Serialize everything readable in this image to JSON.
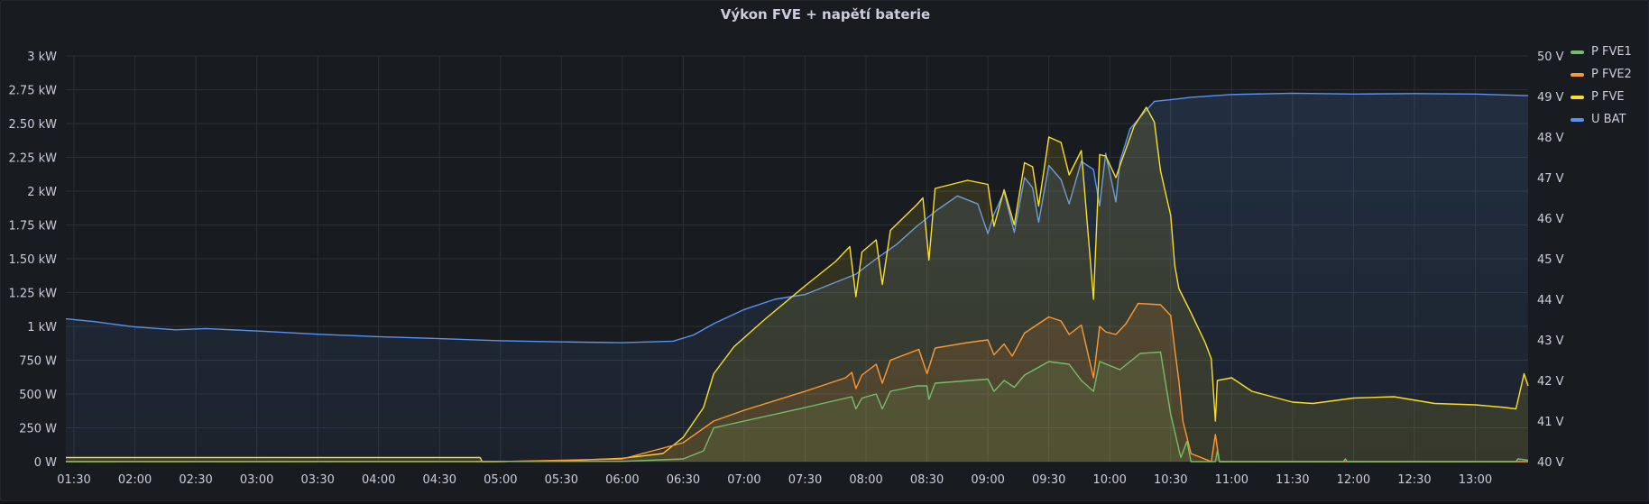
{
  "panel": {
    "title": "Výkon FVE + napětí baterie"
  },
  "colors": {
    "p_fve1": "#73bf69",
    "p_fve2": "#ff9830",
    "p_fve": "#fade2a",
    "u_bat": "#5794f2"
  },
  "legend": [
    {
      "name": "P FVE1",
      "color": "#73bf69"
    },
    {
      "name": "P FVE2",
      "color": "#ff9830"
    },
    {
      "name": "P FVE",
      "color": "#fade2a"
    },
    {
      "name": "U BAT",
      "color": "#5794f2"
    }
  ],
  "chart_data": {
    "type": "area",
    "title": "Výkon FVE + napětí baterie",
    "x_ticks": [
      "01:30",
      "02:00",
      "02:30",
      "03:00",
      "03:30",
      "04:00",
      "04:30",
      "05:00",
      "05:30",
      "06:00",
      "06:30",
      "07:00",
      "07:30",
      "08:00",
      "08:30",
      "09:00",
      "09:30",
      "10:00",
      "10:30",
      "11:00",
      "11:30",
      "12:00",
      "12:30",
      "13:00"
    ],
    "xlim": [
      "01:26",
      "13:26"
    ],
    "y_left": {
      "unit": "W",
      "ylim": [
        0,
        3000
      ],
      "ticks": [
        {
          "value": 0,
          "label": "0 W"
        },
        {
          "value": 250,
          "label": "250 W"
        },
        {
          "value": 500,
          "label": "500 W"
        },
        {
          "value": 750,
          "label": "750 W"
        },
        {
          "value": 1000,
          "label": "1 kW"
        },
        {
          "value": 1250,
          "label": "1.25 kW"
        },
        {
          "value": 1500,
          "label": "1.50 kW"
        },
        {
          "value": 1750,
          "label": "1.75 kW"
        },
        {
          "value": 2000,
          "label": "2 kW"
        },
        {
          "value": 2250,
          "label": "2.25 kW"
        },
        {
          "value": 2500,
          "label": "2.50 kW"
        },
        {
          "value": 2750,
          "label": "2.75 kW"
        },
        {
          "value": 3000,
          "label": "3 kW"
        }
      ]
    },
    "y_right": {
      "unit": "V",
      "ylim": [
        40,
        50
      ],
      "ticks": [
        {
          "value": 40,
          "label": "40 V"
        },
        {
          "value": 41,
          "label": "41 V"
        },
        {
          "value": 42,
          "label": "42 V"
        },
        {
          "value": 43,
          "label": "43 V"
        },
        {
          "value": 44,
          "label": "44 V"
        },
        {
          "value": 45,
          "label": "45 V"
        },
        {
          "value": 46,
          "label": "46 V"
        },
        {
          "value": 47,
          "label": "47 V"
        },
        {
          "value": 48,
          "label": "48 V"
        },
        {
          "value": 49,
          "label": "49 V"
        },
        {
          "value": 50,
          "label": "50 V"
        }
      ]
    },
    "grid": true,
    "legend_position": "right",
    "series": [
      {
        "name": "U BAT",
        "axis": "right",
        "color": "#5794f2",
        "points": [
          [
            "01:26",
            43.52
          ],
          [
            "01:40",
            43.45
          ],
          [
            "02:00",
            43.32
          ],
          [
            "02:20",
            43.25
          ],
          [
            "02:35",
            43.28
          ],
          [
            "03:00",
            43.22
          ],
          [
            "03:30",
            43.14
          ],
          [
            "04:00",
            43.08
          ],
          [
            "04:30",
            43.03
          ],
          [
            "05:00",
            42.98
          ],
          [
            "05:30",
            42.95
          ],
          [
            "06:00",
            42.93
          ],
          [
            "06:25",
            42.97
          ],
          [
            "06:35",
            43.12
          ],
          [
            "06:45",
            43.4
          ],
          [
            "07:00",
            43.75
          ],
          [
            "07:15",
            44.0
          ],
          [
            "07:30",
            44.12
          ],
          [
            "07:45",
            44.42
          ],
          [
            "07:55",
            44.62
          ],
          [
            "08:05",
            45.0
          ],
          [
            "08:15",
            45.35
          ],
          [
            "08:25",
            45.8
          ],
          [
            "08:35",
            46.2
          ],
          [
            "08:45",
            46.55
          ],
          [
            "08:55",
            46.35
          ],
          [
            "09:00",
            45.62
          ],
          [
            "09:03",
            46.1
          ],
          [
            "09:08",
            46.65
          ],
          [
            "09:13",
            45.65
          ],
          [
            "09:18",
            47.0
          ],
          [
            "09:22",
            46.75
          ],
          [
            "09:25",
            45.9
          ],
          [
            "09:30",
            47.3
          ],
          [
            "09:36",
            46.95
          ],
          [
            "09:40",
            46.35
          ],
          [
            "09:46",
            47.4
          ],
          [
            "09:52",
            47.2
          ],
          [
            "09:55",
            46.3
          ],
          [
            "09:58",
            47.6
          ],
          [
            "10:03",
            46.4
          ],
          [
            "10:05",
            47.4
          ],
          [
            "10:10",
            48.2
          ],
          [
            "10:16",
            48.55
          ],
          [
            "10:22",
            48.88
          ],
          [
            "10:30",
            48.92
          ],
          [
            "10:40",
            48.98
          ],
          [
            "11:00",
            49.05
          ],
          [
            "11:30",
            49.08
          ],
          [
            "12:00",
            49.06
          ],
          [
            "12:30",
            49.07
          ],
          [
            "13:00",
            49.06
          ],
          [
            "13:26",
            49.02
          ]
        ]
      },
      {
        "name": "P FVE",
        "axis": "left",
        "color": "#fade2a",
        "points": [
          [
            "01:26",
            30
          ],
          [
            "04:50",
            30
          ],
          [
            "04:51",
            0
          ],
          [
            "05:30",
            5
          ],
          [
            "06:00",
            25
          ],
          [
            "06:20",
            60
          ],
          [
            "06:30",
            180
          ],
          [
            "06:40",
            400
          ],
          [
            "06:45",
            650
          ],
          [
            "06:55",
            850
          ],
          [
            "07:10",
            1050
          ],
          [
            "07:30",
            1300
          ],
          [
            "07:45",
            1480
          ],
          [
            "07:52",
            1590
          ],
          [
            "07:55",
            1220
          ],
          [
            "07:58",
            1550
          ],
          [
            "08:05",
            1640
          ],
          [
            "08:08",
            1310
          ],
          [
            "08:12",
            1710
          ],
          [
            "08:25",
            1900
          ],
          [
            "08:28",
            1950
          ],
          [
            "08:31",
            1490
          ],
          [
            "08:34",
            2020
          ],
          [
            "08:50",
            2080
          ],
          [
            "09:00",
            2050
          ],
          [
            "09:03",
            1740
          ],
          [
            "09:08",
            2010
          ],
          [
            "09:13",
            1750
          ],
          [
            "09:18",
            2210
          ],
          [
            "09:22",
            2180
          ],
          [
            "09:25",
            1890
          ],
          [
            "09:30",
            2400
          ],
          [
            "09:36",
            2360
          ],
          [
            "09:40",
            2120
          ],
          [
            "09:46",
            2300
          ],
          [
            "09:52",
            1200
          ],
          [
            "09:55",
            2270
          ],
          [
            "09:58",
            2260
          ],
          [
            "10:03",
            2100
          ],
          [
            "10:06",
            2230
          ],
          [
            "10:12",
            2480
          ],
          [
            "10:18",
            2620
          ],
          [
            "10:22",
            2510
          ],
          [
            "10:25",
            2150
          ],
          [
            "10:30",
            1820
          ],
          [
            "10:32",
            1450
          ],
          [
            "10:34",
            1280
          ],
          [
            "10:40",
            1100
          ],
          [
            "10:47",
            880
          ],
          [
            "10:50",
            760
          ],
          [
            "10:52",
            300
          ],
          [
            "10:53",
            600
          ],
          [
            "11:00",
            620
          ],
          [
            "11:10",
            520
          ],
          [
            "11:20",
            480
          ],
          [
            "11:30",
            440
          ],
          [
            "11:40",
            430
          ],
          [
            "12:00",
            470
          ],
          [
            "12:20",
            480
          ],
          [
            "12:40",
            430
          ],
          [
            "13:00",
            420
          ],
          [
            "13:15",
            400
          ],
          [
            "13:20",
            390
          ],
          [
            "13:24",
            650
          ],
          [
            "13:26",
            560
          ]
        ]
      },
      {
        "name": "P FVE2",
        "axis": "left",
        "color": "#ff9830",
        "points": [
          [
            "01:26",
            0
          ],
          [
            "05:00",
            0
          ],
          [
            "06:00",
            20
          ],
          [
            "06:30",
            140
          ],
          [
            "06:45",
            300
          ],
          [
            "07:00",
            380
          ],
          [
            "07:30",
            520
          ],
          [
            "07:50",
            620
          ],
          [
            "07:53",
            660
          ],
          [
            "07:55",
            540
          ],
          [
            "07:58",
            640
          ],
          [
            "08:05",
            720
          ],
          [
            "08:08",
            580
          ],
          [
            "08:12",
            750
          ],
          [
            "08:26",
            830
          ],
          [
            "08:30",
            650
          ],
          [
            "08:34",
            840
          ],
          [
            "08:50",
            880
          ],
          [
            "09:00",
            900
          ],
          [
            "09:03",
            790
          ],
          [
            "09:08",
            870
          ],
          [
            "09:12",
            780
          ],
          [
            "09:18",
            950
          ],
          [
            "09:30",
            1070
          ],
          [
            "09:36",
            1040
          ],
          [
            "09:40",
            940
          ],
          [
            "09:46",
            1010
          ],
          [
            "09:52",
            620
          ],
          [
            "09:55",
            1000
          ],
          [
            "09:58",
            960
          ],
          [
            "10:03",
            940
          ],
          [
            "10:08",
            1020
          ],
          [
            "10:14",
            1170
          ],
          [
            "10:25",
            1160
          ],
          [
            "10:30",
            1080
          ],
          [
            "10:32",
            830
          ],
          [
            "10:34",
            600
          ],
          [
            "10:36",
            300
          ],
          [
            "10:40",
            60
          ],
          [
            "10:50",
            0
          ],
          [
            "10:52",
            200
          ],
          [
            "10:54",
            0
          ],
          [
            "13:26",
            0
          ]
        ]
      },
      {
        "name": "P FVE1",
        "axis": "left",
        "color": "#73bf69",
        "points": [
          [
            "01:26",
            0
          ],
          [
            "06:00",
            2
          ],
          [
            "06:30",
            20
          ],
          [
            "06:40",
            80
          ],
          [
            "06:45",
            250
          ],
          [
            "07:00",
            300
          ],
          [
            "07:30",
            400
          ],
          [
            "07:53",
            480
          ],
          [
            "07:55",
            390
          ],
          [
            "07:58",
            470
          ],
          [
            "08:05",
            500
          ],
          [
            "08:08",
            390
          ],
          [
            "08:12",
            520
          ],
          [
            "08:25",
            560
          ],
          [
            "08:30",
            560
          ],
          [
            "08:31",
            460
          ],
          [
            "08:34",
            580
          ],
          [
            "09:00",
            610
          ],
          [
            "09:03",
            520
          ],
          [
            "09:08",
            600
          ],
          [
            "09:13",
            550
          ],
          [
            "09:18",
            640
          ],
          [
            "09:30",
            740
          ],
          [
            "09:40",
            720
          ],
          [
            "09:46",
            600
          ],
          [
            "09:52",
            520
          ],
          [
            "09:55",
            740
          ],
          [
            "10:05",
            680
          ],
          [
            "10:15",
            800
          ],
          [
            "10:25",
            810
          ],
          [
            "10:30",
            350
          ],
          [
            "10:35",
            30
          ],
          [
            "10:38",
            150
          ],
          [
            "10:40",
            0
          ],
          [
            "10:52",
            0
          ],
          [
            "10:53",
            80
          ],
          [
            "10:54",
            0
          ],
          [
            "11:55",
            0
          ],
          [
            "11:56",
            20
          ],
          [
            "11:57",
            0
          ],
          [
            "13:20",
            0
          ],
          [
            "13:21",
            20
          ],
          [
            "13:26",
            10
          ]
        ]
      }
    ]
  }
}
